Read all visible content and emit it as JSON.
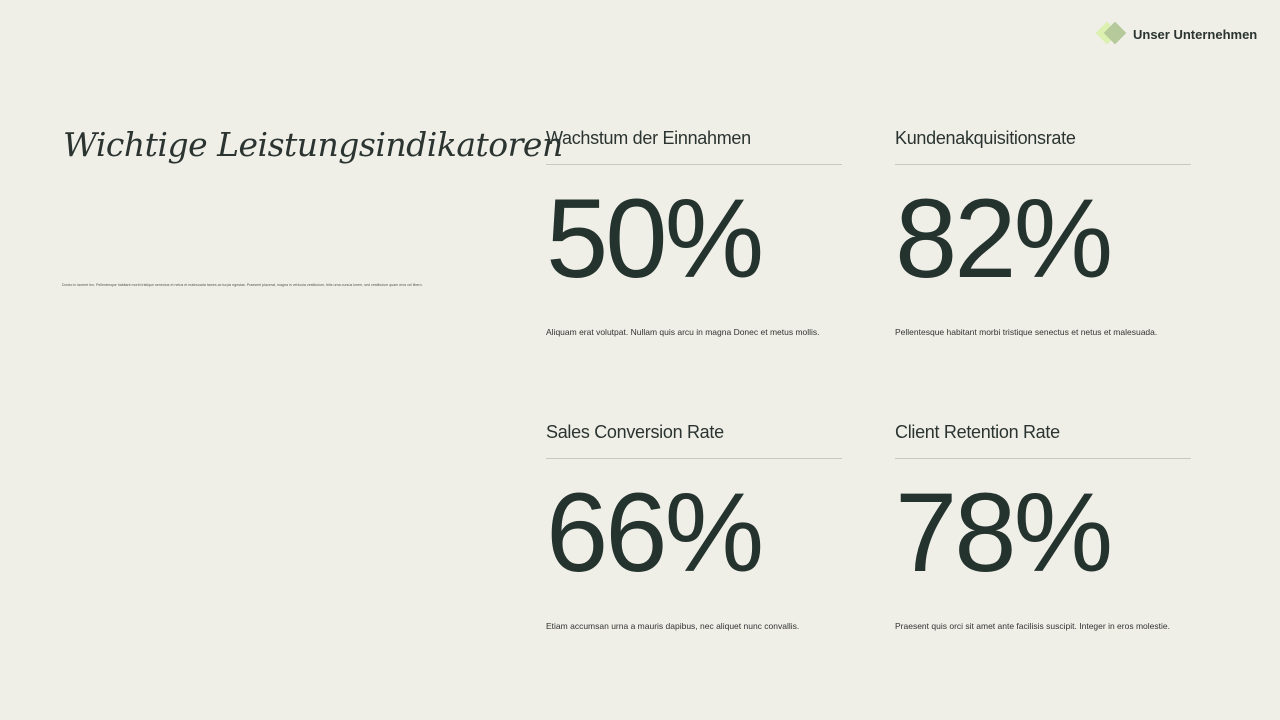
{
  "brand": {
    "name": "Unser Unternehmen",
    "logo_colors": [
      "#d9f0a8",
      "#b5c99a"
    ]
  },
  "title": "Wichtige Leistungsindikatoren",
  "intro": "Donec in laoreet leo. Pellentesque habitant morbi tristique senectus et netus et malesuada fames ac turpis egestas. Praesent placerat, magna in vehicula vestibulum, felis urna cursus lorem, sed vestibulum quam eros vel libero.",
  "kpis": [
    {
      "label": "Wachstum der Einnahmen",
      "value": "50%",
      "description": "Aliquam erat volutpat. Nullam quis arcu in magna Donec et metus mollis."
    },
    {
      "label": "Kundenakquisitionsrate",
      "value": "82%",
      "description": "Pellentesque habitant morbi tristique senectus et netus et malesuada."
    },
    {
      "label": "Sales Conversion Rate",
      "value": "66%",
      "description": "Etiam accumsan urna a mauris dapibus, nec aliquet nunc convallis."
    },
    {
      "label": "Client Retention Rate",
      "value": "78%",
      "description": "Praesent quis orci sit amet ante facilisis suscipit. Integer in eros molestie."
    }
  ]
}
